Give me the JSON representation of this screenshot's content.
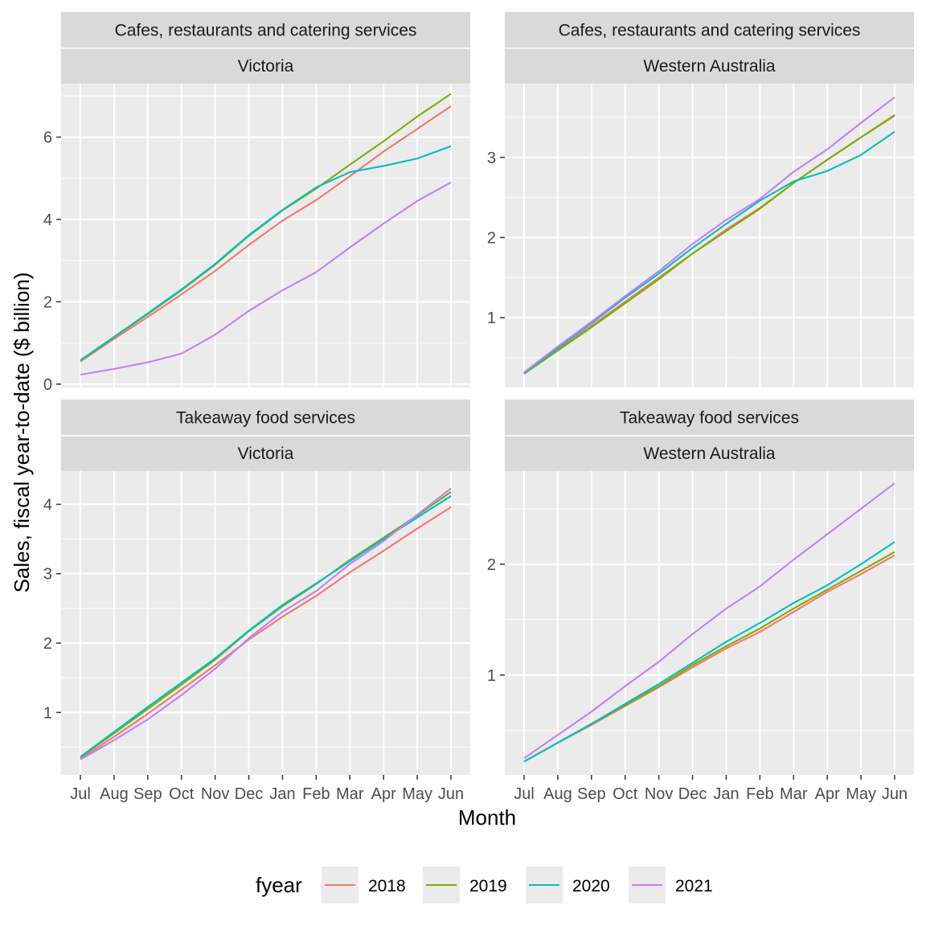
{
  "chart_data": {
    "type": "line",
    "facet_layout": "2x2",
    "xlabel": "Month",
    "ylabel": "Sales, fiscal year-to-date ($ billion)",
    "months": [
      "Jul",
      "Aug",
      "Sep",
      "Oct",
      "Nov",
      "Dec",
      "Jan",
      "Feb",
      "Mar",
      "Apr",
      "May",
      "Jun"
    ],
    "legend": {
      "title": "fyear",
      "position": "bottom",
      "entries": [
        {
          "name": "2018",
          "color": "#F8766D"
        },
        {
          "name": "2019",
          "color": "#7CAE00"
        },
        {
          "name": "2020",
          "color": "#00BFC4"
        },
        {
          "name": "2021",
          "color": "#C77CFF"
        }
      ]
    },
    "panels": [
      {
        "industry": "Cafes, restaurants and catering services",
        "state": "Victoria",
        "ylim": [
          -0.08,
          7.3
        ],
        "yticks": [
          0,
          2,
          4,
          6
        ],
        "ytick_labels": [
          "0",
          "2",
          "4",
          "6"
        ],
        "series": [
          {
            "name": "2018",
            "values": [
              0.55,
              1.1,
              1.63,
              2.18,
              2.75,
              3.38,
              3.97,
              4.47,
              5.05,
              5.65,
              6.2,
              6.75
            ]
          },
          {
            "name": "2019",
            "values": [
              0.57,
              1.14,
              1.7,
              2.28,
              2.9,
              3.6,
              4.22,
              4.75,
              5.33,
              5.9,
              6.5,
              7.05
            ]
          },
          {
            "name": "2020",
            "values": [
              0.58,
              1.15,
              1.72,
              2.3,
              2.92,
              3.62,
              4.23,
              4.78,
              5.15,
              5.3,
              5.48,
              5.78
            ]
          },
          {
            "name": "2021",
            "values": [
              0.23,
              0.37,
              0.53,
              0.74,
              1.2,
              1.78,
              2.28,
              2.72,
              3.32,
              3.9,
              4.45,
              4.9
            ]
          }
        ]
      },
      {
        "industry": "Cafes, restaurants and catering services",
        "state": "Western Australia",
        "ylim": [
          0.13,
          3.92
        ],
        "yticks": [
          1,
          2,
          3
        ],
        "ytick_labels": [
          "1",
          "2",
          "3"
        ],
        "series": [
          {
            "name": "2018",
            "values": [
              0.3,
              0.6,
              0.9,
              1.2,
              1.5,
              1.8,
              2.1,
              2.37,
              2.68,
              2.97,
              3.25,
              3.53
            ]
          },
          {
            "name": "2019",
            "values": [
              0.3,
              0.59,
              0.88,
              1.18,
              1.48,
              1.8,
              2.08,
              2.36,
              2.68,
              2.97,
              3.25,
              3.52
            ]
          },
          {
            "name": "2020",
            "values": [
              0.31,
              0.62,
              0.93,
              1.25,
              1.55,
              1.87,
              2.17,
              2.46,
              2.7,
              2.83,
              3.03,
              3.32
            ]
          },
          {
            "name": "2021",
            "values": [
              0.32,
              0.64,
              0.95,
              1.27,
              1.58,
              1.92,
              2.22,
              2.48,
              2.82,
              3.1,
              3.43,
              3.75
            ]
          }
        ]
      },
      {
        "industry": "Takeaway food services",
        "state": "Victoria",
        "ylim": [
          0.1,
          4.48
        ],
        "yticks": [
          1,
          2,
          3,
          4
        ],
        "ytick_labels": [
          "1",
          "2",
          "3",
          "4"
        ],
        "series": [
          {
            "name": "2018",
            "values": [
              0.33,
              0.65,
              0.98,
              1.33,
              1.68,
              2.05,
              2.38,
              2.68,
              3.02,
              3.33,
              3.65,
              3.96
            ]
          },
          {
            "name": "2019",
            "values": [
              0.35,
              0.7,
              1.05,
              1.4,
              1.76,
              2.17,
              2.53,
              2.85,
              3.2,
              3.52,
              3.84,
              4.18
            ]
          },
          {
            "name": "2020",
            "values": [
              0.36,
              0.72,
              1.08,
              1.43,
              1.78,
              2.18,
              2.55,
              2.86,
              3.18,
              3.5,
              3.81,
              4.12
            ]
          },
          {
            "name": "2021",
            "values": [
              0.32,
              0.6,
              0.9,
              1.25,
              1.63,
              2.07,
              2.45,
              2.75,
              3.14,
              3.47,
              3.85,
              4.23
            ]
          }
        ]
      },
      {
        "industry": "Takeaway food services",
        "state": "Western Australia",
        "ylim": [
          0.1,
          2.84
        ],
        "yticks": [
          1,
          2
        ],
        "ytick_labels": [
          "1",
          "2"
        ],
        "series": [
          {
            "name": "2018",
            "values": [
              0.22,
              0.39,
              0.55,
              0.72,
              0.89,
              1.07,
              1.24,
              1.39,
              1.57,
              1.75,
              1.91,
              2.08
            ]
          },
          {
            "name": "2019",
            "values": [
              0.22,
              0.39,
              0.56,
              0.73,
              0.9,
              1.09,
              1.26,
              1.42,
              1.6,
              1.77,
              1.94,
              2.11
            ]
          },
          {
            "name": "2020",
            "values": [
              0.22,
              0.39,
              0.56,
              0.74,
              0.92,
              1.11,
              1.3,
              1.47,
              1.65,
              1.81,
              2.0,
              2.2
            ]
          },
          {
            "name": "2021",
            "values": [
              0.25,
              0.46,
              0.67,
              0.9,
              1.12,
              1.37,
              1.6,
              1.8,
              2.04,
              2.27,
              2.5,
              2.73
            ]
          }
        ]
      }
    ]
  }
}
